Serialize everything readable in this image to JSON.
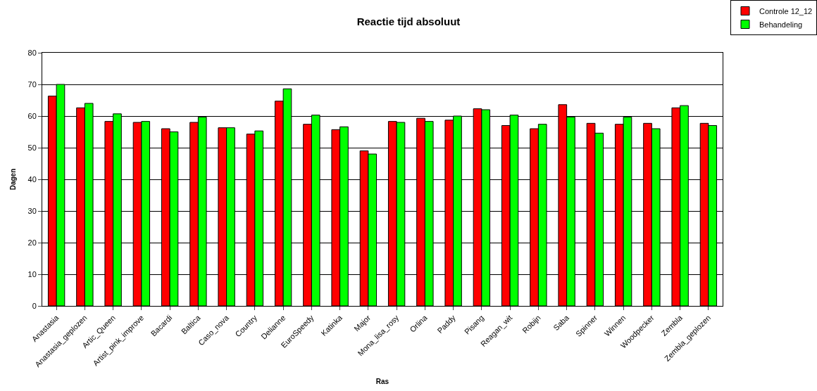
{
  "chart_data": {
    "type": "bar",
    "title": "Reactie tijd absoluut",
    "xlabel": "Ras",
    "ylabel": "Dagen",
    "categories": [
      "Anastasia",
      "Anastasia_geplozen",
      "Artic_Queen",
      "Artist_pink_improve",
      "Bacardi",
      "Baltica",
      "Caso_nova",
      "Country",
      "Delianne",
      "EuroSpeedy",
      "Katinka",
      "Major",
      "Mona_lisa_rosy",
      "Orlina",
      "Paddy",
      "Pisang",
      "Reagan_wit",
      "Robijn",
      "Saba",
      "Spinner",
      "Winnen",
      "Woodpecker",
      "Zembla",
      "Zembla_geplozen"
    ],
    "series": [
      {
        "name": "Controle 12_12",
        "color": "#ff0000",
        "values": [
          66.3,
          62.6,
          58.3,
          58.0,
          56.0,
          58.0,
          56.3,
          54.3,
          64.7,
          57.4,
          55.7,
          49.0,
          58.3,
          59.3,
          58.7,
          62.3,
          57.0,
          56.0,
          63.6,
          57.7,
          57.4,
          57.7,
          62.6,
          57.7
        ]
      },
      {
        "name": "Behandeling",
        "color": "#00ff00",
        "values": [
          70.0,
          64.0,
          60.7,
          58.3,
          55.0,
          59.7,
          56.3,
          55.3,
          68.6,
          60.3,
          56.6,
          48.0,
          58.0,
          58.3,
          60.0,
          62.0,
          60.3,
          57.4,
          59.7,
          54.6,
          59.7,
          56.0,
          63.3,
          57.0
        ]
      }
    ],
    "ylim": [
      0,
      80
    ],
    "yticks": [
      0,
      10,
      20,
      30,
      40,
      50,
      60,
      70,
      80
    ],
    "grid": "y",
    "legend": "top right"
  }
}
